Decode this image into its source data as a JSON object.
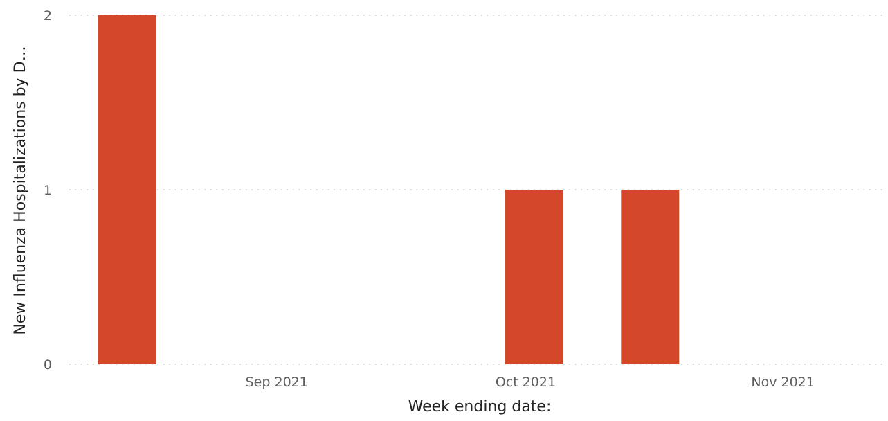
{
  "chart_data": {
    "type": "bar",
    "xlabel": "Week ending date:",
    "ylabel": "New Influenza Hospitalizations by D…",
    "ylim": [
      0,
      2
    ],
    "y_ticks": [
      "0",
      "1",
      "2"
    ],
    "x_range": [
      "2021-08-07",
      "2021-11-13"
    ],
    "x_ticks": [
      {
        "date": "2021-09-01",
        "label": "Sep 2021"
      },
      {
        "date": "2021-10-01",
        "label": "Oct 2021"
      },
      {
        "date": "2021-11-01",
        "label": "Nov 2021"
      }
    ],
    "x": [
      "2021-08-14",
      "2021-10-02",
      "2021-10-16"
    ],
    "values": [
      2,
      1,
      1
    ],
    "bar_color": "#d4472a",
    "grid": true,
    "gridline_color": "#c8c6c4"
  }
}
